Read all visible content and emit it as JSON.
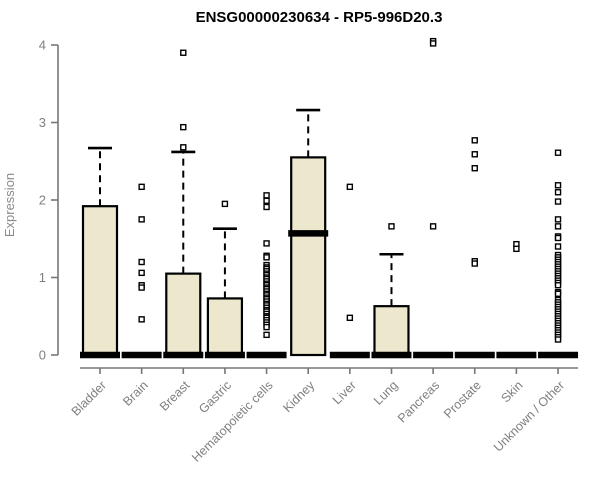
{
  "chart_data": {
    "type": "boxplot",
    "title": "ENSG00000230634 - RP5-996D20.3",
    "ylabel": "Expression",
    "xlabel": "",
    "ylim": [
      0,
      4
    ],
    "yticks": [
      0,
      1,
      2,
      3,
      4
    ],
    "grid": false,
    "legend": false,
    "colors": {
      "box_fill": "#ece7cd",
      "box_border": "#000000",
      "median": "#000000",
      "axis": "#777777",
      "tick_text": "#7f7f7f",
      "title_text": "#000000"
    },
    "categories": [
      "Bladder",
      "Brain",
      "Breast",
      "Gastric",
      "Hematopoietic cells",
      "Kidney",
      "Liver",
      "Lung",
      "Pancreas",
      "Prostate",
      "Skin",
      "Unknown / Other"
    ],
    "series": [
      {
        "category": "Bladder",
        "whisker_low": 0,
        "q1": 0,
        "median": 0,
        "q3": 1.92,
        "whisker_high": 2.67,
        "outliers": []
      },
      {
        "category": "Brain",
        "whisker_low": 0,
        "q1": 0,
        "median": 0,
        "q3": 0,
        "whisker_high": 0,
        "outliers": [
          2.17,
          1.75,
          1.2,
          1.06,
          0.9,
          0.87,
          0.46
        ]
      },
      {
        "category": "Breast",
        "whisker_low": 0,
        "q1": 0,
        "median": 0,
        "q3": 1.05,
        "whisker_high": 2.62,
        "outliers": [
          3.9,
          2.94,
          2.68
        ]
      },
      {
        "category": "Gastric",
        "whisker_low": 0,
        "q1": 0,
        "median": 0,
        "q3": 0.73,
        "whisker_high": 1.63,
        "outliers": [
          1.95
        ]
      },
      {
        "category": "Hematopoietic cells",
        "whisker_low": 0,
        "q1": 0,
        "median": 0,
        "q3": 0,
        "whisker_high": 0,
        "outliers": [
          2.06,
          1.99,
          1.91,
          1.44,
          1.28,
          1.26,
          1.16,
          1.13,
          1.11,
          1.08,
          1.05,
          1.03,
          1.0,
          0.98,
          0.95,
          0.92,
          0.9,
          0.87,
          0.85,
          0.82,
          0.79,
          0.77,
          0.74,
          0.72,
          0.69,
          0.66,
          0.64,
          0.61,
          0.58,
          0.56,
          0.53,
          0.5,
          0.48,
          0.45,
          0.42,
          0.39,
          0.36,
          0.26
        ]
      },
      {
        "category": "Kidney",
        "whisker_low": 0,
        "q1": 0,
        "median": 1.57,
        "q3": 2.55,
        "whisker_high": 3.16,
        "outliers": []
      },
      {
        "category": "Liver",
        "whisker_low": 0,
        "q1": 0,
        "median": 0,
        "q3": 0,
        "whisker_high": 0,
        "outliers": [
          2.17,
          0.48
        ]
      },
      {
        "category": "Lung",
        "whisker_low": 0,
        "q1": 0,
        "median": 0,
        "q3": 0.63,
        "whisker_high": 1.3,
        "outliers": [
          1.66
        ]
      },
      {
        "category": "Pancreas",
        "whisker_low": 0,
        "q1": 0,
        "median": 0,
        "q3": 0,
        "whisker_high": 0,
        "outliers": [
          4.05,
          4.02,
          1.66
        ]
      },
      {
        "category": "Prostate",
        "whisker_low": 0,
        "q1": 0,
        "median": 0,
        "q3": 0,
        "whisker_high": 0,
        "outliers": [
          2.77,
          2.59,
          2.41,
          1.21,
          1.18
        ]
      },
      {
        "category": "Skin",
        "whisker_low": 0,
        "q1": 0,
        "median": 0,
        "q3": 0,
        "whisker_high": 0,
        "outliers": [
          1.43,
          1.37
        ]
      },
      {
        "category": "Unknown / Other",
        "whisker_low": 0,
        "q1": 0,
        "median": 0,
        "q3": 0,
        "whisker_high": 0,
        "outliers": [
          2.61,
          2.19,
          2.1,
          1.98,
          1.75,
          1.66,
          1.53,
          1.51,
          1.4,
          1.29,
          1.26,
          1.23,
          1.2,
          1.17,
          1.14,
          1.11,
          1.08,
          1.05,
          1.02,
          0.99,
          0.96,
          0.93,
          0.9,
          0.81,
          0.79,
          0.71,
          0.68,
          0.65,
          0.62,
          0.59,
          0.56,
          0.53,
          0.5,
          0.47,
          0.44,
          0.41,
          0.38,
          0.35,
          0.32,
          0.29,
          0.26,
          0.23,
          0.2
        ]
      }
    ]
  }
}
